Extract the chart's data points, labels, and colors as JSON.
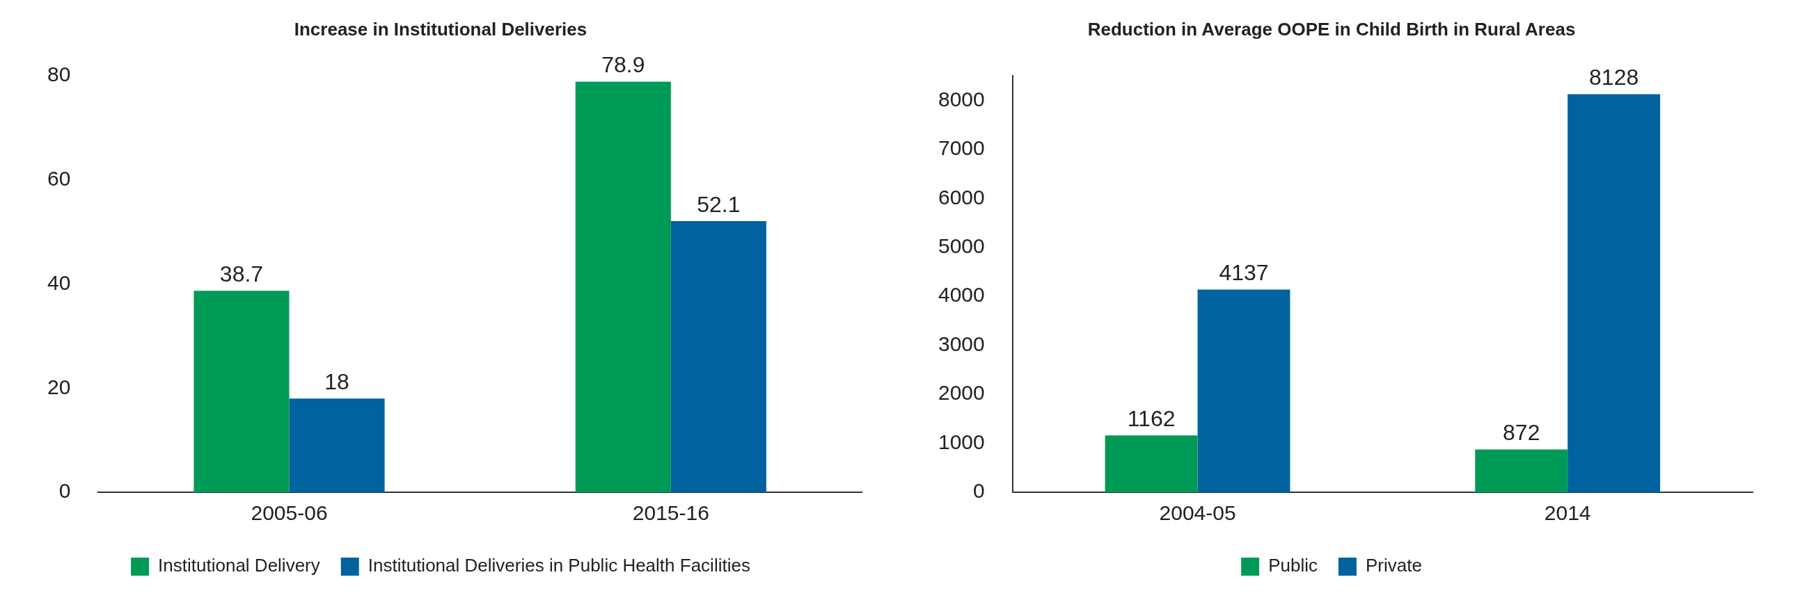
{
  "chart_data": [
    {
      "type": "bar",
      "title": "Increase in Institutional Deliveries",
      "categories": [
        "2005-06",
        "2015-16"
      ],
      "series": [
        {
          "name": "Institutional Delivery",
          "color": "#009a57",
          "values": [
            38.7,
            78.9
          ]
        },
        {
          "name": "Institutional Deliveries in Public Health Facilities",
          "color": "#00629e",
          "values": [
            18,
            52.1
          ]
        }
      ],
      "ylim": [
        0,
        80
      ],
      "yticks": [
        0,
        20,
        40,
        60,
        80
      ],
      "grid": false,
      "legend": "bottom",
      "data_labels": true
    },
    {
      "type": "bar",
      "title": "Reduction in Average OOPE in Child Birth in Rural Areas",
      "categories": [
        "2004-05",
        "2014"
      ],
      "series": [
        {
          "name": "Public",
          "color": "#009a57",
          "values": [
            1162,
            872
          ]
        },
        {
          "name": "Private",
          "color": "#00629e",
          "values": [
            4137,
            8128
          ]
        }
      ],
      "ylim": [
        0,
        8500
      ],
      "yticks": [
        0,
        1000,
        2000,
        3000,
        4000,
        5000,
        6000,
        7000,
        8000
      ],
      "grid": false,
      "legend": "bottom",
      "data_labels": true
    }
  ]
}
